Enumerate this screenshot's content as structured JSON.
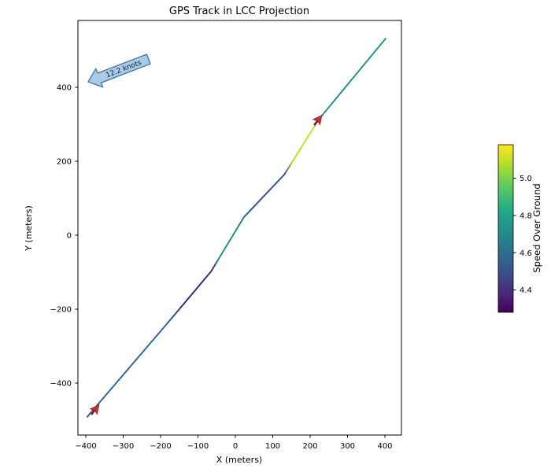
{
  "chart_data": {
    "type": "line",
    "title": "GPS Track in LCC Projection",
    "xlabel": "X (meters)",
    "ylabel": "Y (meters)",
    "xlim": [
      -420,
      445
    ],
    "ylim": [
      -540,
      580
    ],
    "grid": false,
    "background_color": "#ffffff",
    "x_ticks": [
      -400,
      -300,
      -200,
      -100,
      0,
      100,
      200,
      300,
      400
    ],
    "x_tick_labels": [
      "−400",
      "−300",
      "−200",
      "−100",
      "0",
      "100",
      "200",
      "300",
      "400"
    ],
    "y_ticks": [
      -400,
      -200,
      0,
      200,
      400
    ],
    "y_tick_labels": [
      "−400",
      "−200",
      "0",
      "200",
      "400"
    ],
    "track": {
      "description": "GPS track polyline colored by Speed Over Ground (viridis)",
      "points": [
        [
          -396,
          -491
        ],
        [
          -175,
          -230
        ],
        [
          -65,
          -98
        ],
        [
          23,
          49
        ],
        [
          131,
          164
        ],
        [
          223,
          313
        ],
        [
          402,
          532
        ]
      ],
      "segment_speeds": [
        4.66,
        4.39,
        4.73,
        4.58,
        5.12,
        4.72
      ],
      "gradient_stops": [
        {
          "offset": 0,
          "color": "#31688e"
        },
        {
          "offset": 25,
          "color": "#31688e"
        },
        {
          "offset": 31,
          "color": "#312c78"
        },
        {
          "offset": 40,
          "color": "#312c78"
        },
        {
          "offset": 43,
          "color": "#21918c"
        },
        {
          "offset": 50,
          "color": "#21918c"
        },
        {
          "offset": 55,
          "color": "#3b528b"
        },
        {
          "offset": 65,
          "color": "#3b528b"
        },
        {
          "offset": 68,
          "color": "#b5dd2b"
        },
        {
          "offset": 76,
          "color": "#d2e429"
        },
        {
          "offset": 79,
          "color": "#26918c"
        },
        {
          "offset": 100,
          "color": "#26918c"
        }
      ]
    },
    "colorbar": {
      "label": "Speed Over Ground",
      "colormap": "viridis",
      "range": [
        4.28,
        5.18
      ],
      "ticks": [
        4.4,
        4.6,
        4.8,
        5.0
      ],
      "tick_labels": [
        "4.4",
        "4.6",
        "4.8",
        "5.0"
      ],
      "gradient": [
        "#fde725",
        "#bddf26",
        "#7ad151",
        "#44bf70",
        "#22a884",
        "#21918c",
        "#2a788e",
        "#35608d",
        "#414487",
        "#482475",
        "#440154"
      ]
    },
    "annotation": {
      "label": "12.2 knots",
      "arrow_tip_xy": [
        -392,
        415
      ],
      "arrow_tail_xy": [
        -225,
        481
      ],
      "fill_color": "#a9cde6",
      "outline_color": "#4579ad"
    },
    "waypoint_arrows": {
      "positions": [
        [
          -375,
          -472
        ],
        [
          221,
          311
        ]
      ],
      "rotation_deg": -52,
      "color": "#c63333",
      "outline_color": "#8f1f1f",
      "stem_color": "#7b2437"
    }
  }
}
